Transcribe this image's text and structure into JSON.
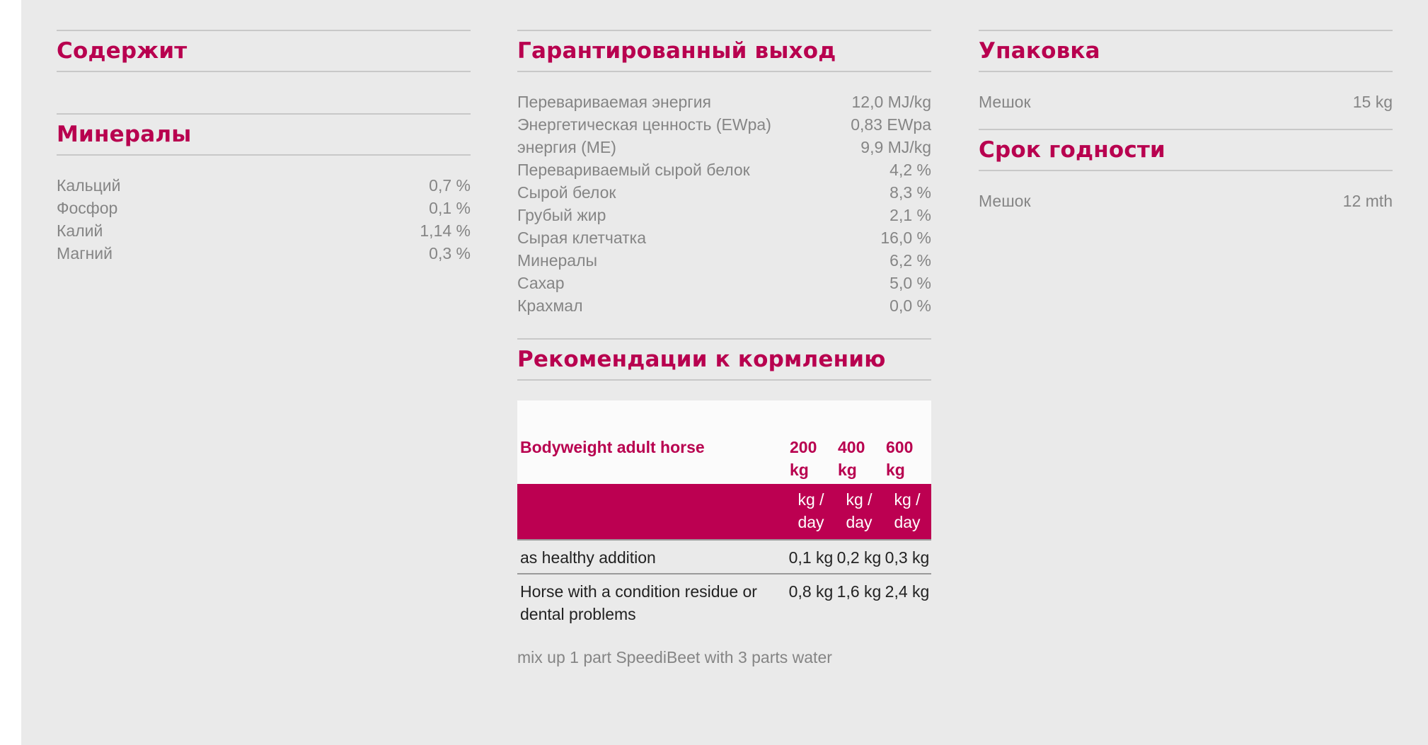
{
  "contains": {
    "title": "Содержит"
  },
  "minerals": {
    "title": "Минералы",
    "items": [
      {
        "label": "Кальций",
        "value": "0,7 %"
      },
      {
        "label": "Фосфор",
        "value": "0,1 %"
      },
      {
        "label": "Калий",
        "value": "1,14 %"
      },
      {
        "label": "Магний",
        "value": "0,3 %"
      }
    ]
  },
  "guaranteed": {
    "title": "Гарантированный выход",
    "items": [
      {
        "label": "Перевариваемая энергия",
        "value": "12,0 MJ/kg"
      },
      {
        "label": "Энергетическая ценность (EWpa)",
        "value": "0,83 EWpa"
      },
      {
        "label": "энергия (ME)",
        "value": "9,9 MJ/kg"
      },
      {
        "label": "Перевариваемый сырой белок",
        "value": "4,2 %"
      },
      {
        "label": "Сырой белок",
        "value": "8,3 %"
      },
      {
        "label": "Грубый жир",
        "value": "2,1 %"
      },
      {
        "label": "Сырая клетчатка",
        "value": "16,0 %"
      },
      {
        "label": "Минералы",
        "value": "6,2 %"
      },
      {
        "label": "Сахар",
        "value": "5,0 %"
      },
      {
        "label": "Крахмал",
        "value": "0,0 %"
      }
    ]
  },
  "feeding": {
    "title": "Рекомендации к кормлению",
    "header_label": "Bodyweight adult horse",
    "weights": [
      "200 kg",
      "400 kg",
      "600 kg"
    ],
    "units": [
      "kg / day",
      "kg / day",
      "kg / day"
    ],
    "rows": [
      {
        "label": "as healthy addition",
        "values": [
          "0,1 kg",
          "0,2 kg",
          "0,3 kg"
        ]
      },
      {
        "label": "Horse with a condition residue or dental problems",
        "values": [
          "0,8 kg",
          "1,6 kg",
          "2,4 kg"
        ]
      }
    ],
    "note": "mix up 1 part SpeediBeet with 3 parts water"
  },
  "packaging": {
    "title": "Упаковка",
    "items": [
      {
        "label": "Мешок",
        "value": "15 kg"
      }
    ]
  },
  "shelf_life": {
    "title": "Срок годности",
    "items": [
      {
        "label": "Мешок",
        "value": "12 mth"
      }
    ]
  }
}
